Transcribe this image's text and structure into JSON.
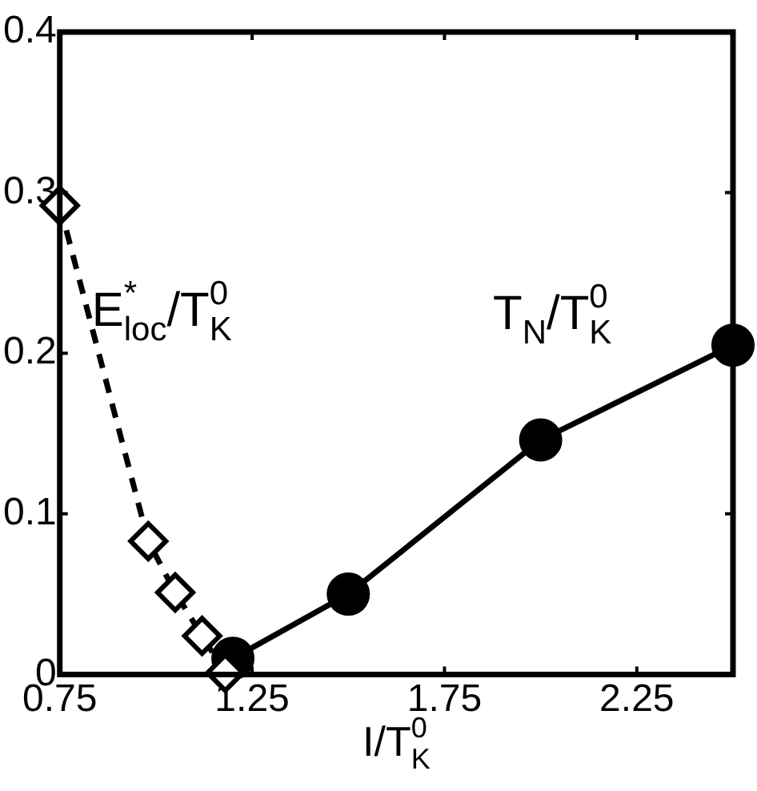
{
  "chart_data": {
    "type": "line",
    "xlabel": "I/T$_{K}$$^{0}$",
    "xlim": [
      0.75,
      2.5
    ],
    "xticks": [
      0.75,
      1.25,
      1.75,
      2.25
    ],
    "ylim": [
      0,
      0.4
    ],
    "yticks": [
      0,
      0.1,
      0.2,
      0.3,
      0.4
    ],
    "grid": false,
    "legend": false,
    "series": [
      {
        "name": "E$_{loc}$$^{*}$/T$_{K}$$^{0}$",
        "color": "#000000",
        "marker": "diamond",
        "line_style": "dashed",
        "x": [
          0.75,
          0.98,
          1.05,
          1.12,
          1.18
        ],
        "values": [
          0.292,
          0.083,
          0.051,
          0.024,
          0.001
        ]
      },
      {
        "name": "T$_{N}$/T$_{K}$$^{0}$",
        "color": "#000000",
        "marker": "circle",
        "line_style": "solid",
        "x": [
          1.2,
          1.5,
          2.0,
          2.5
        ],
        "values": [
          0.01,
          0.05,
          0.146,
          0.205
        ]
      }
    ]
  }
}
